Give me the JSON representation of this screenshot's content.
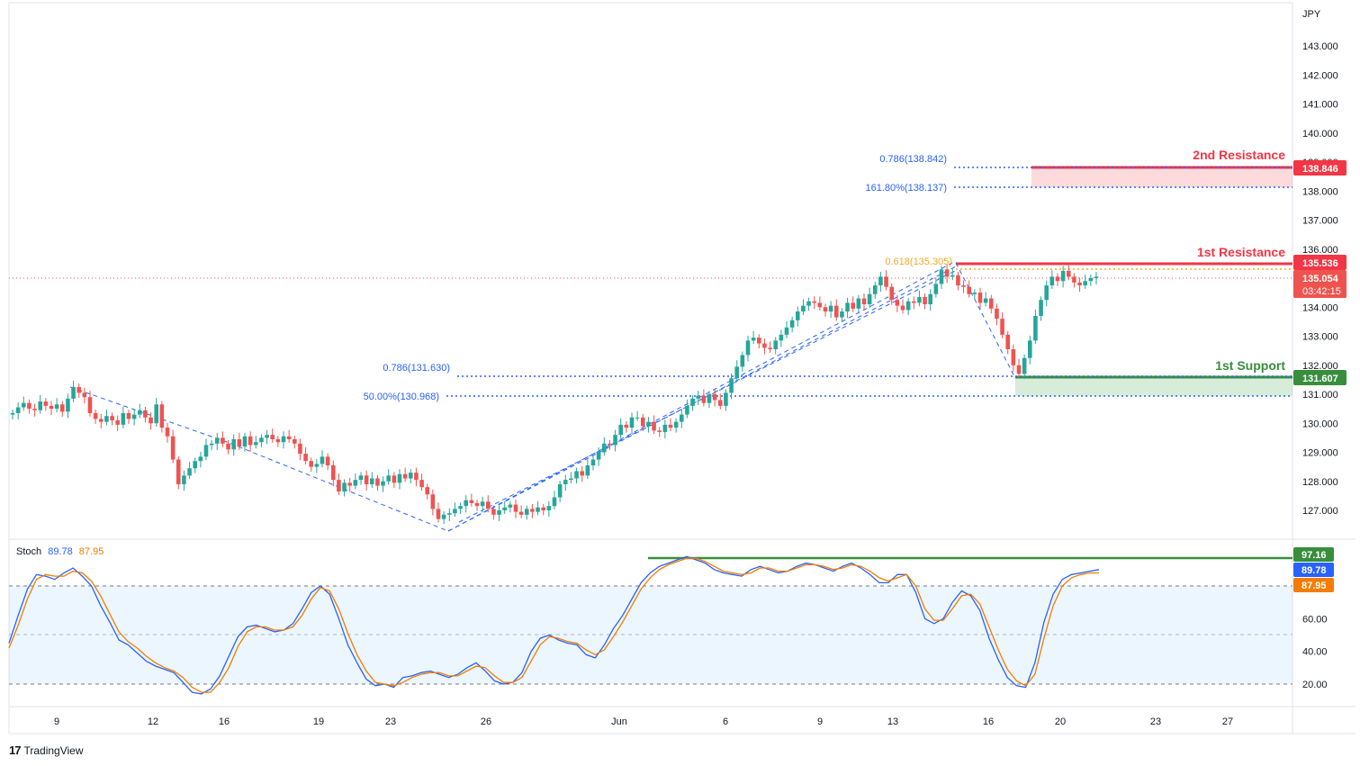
{
  "currency_label": "JPY",
  "chart_data": [
    {
      "type": "candlestick",
      "title": "",
      "y_unit": "JPY",
      "ylim": [
        126.2,
        143.5
      ],
      "y_ticks": [
        "143.000",
        "142.000",
        "141.000",
        "140.000",
        "139.000",
        "138.000",
        "137.000",
        "136.000",
        "135.000",
        "134.000",
        "133.000",
        "132.000",
        "131.000",
        "130.000",
        "129.000",
        "128.000",
        "127.000"
      ],
      "x_ticks": [
        "9",
        "12",
        "16",
        "19",
        "23",
        "26",
        "Jun",
        "6",
        "9",
        "13",
        "16",
        "20",
        "23",
        "27"
      ],
      "closes": [
        130.35,
        130.55,
        130.7,
        130.5,
        130.45,
        130.75,
        130.6,
        130.5,
        130.65,
        130.4,
        130.85,
        131.25,
        131.05,
        130.9,
        130.35,
        130.15,
        130.05,
        130.25,
        130.1,
        129.95,
        130.35,
        130.15,
        130.3,
        130.45,
        130.2,
        130.0,
        130.65,
        129.85,
        129.55,
        128.75,
        127.9,
        128.2,
        128.45,
        128.7,
        128.85,
        129.25,
        129.3,
        129.5,
        129.3,
        129.1,
        129.45,
        129.2,
        129.55,
        129.25,
        129.35,
        129.5,
        129.6,
        129.45,
        129.35,
        129.55,
        129.45,
        129.3,
        128.95,
        128.7,
        128.5,
        128.6,
        128.85,
        128.55,
        128.05,
        127.65,
        127.95,
        127.85,
        128.05,
        128.2,
        127.9,
        128.1,
        127.85,
        128.0,
        128.2,
        127.95,
        128.25,
        128.1,
        128.3,
        128.05,
        127.8,
        127.55,
        127.05,
        126.7,
        126.85,
        126.9,
        127.05,
        127.15,
        127.35,
        127.25,
        127.15,
        127.3,
        127.05,
        126.85,
        127.0,
        127.1,
        127.2,
        126.95,
        126.85,
        127.05,
        126.95,
        127.1,
        127.0,
        127.15,
        127.45,
        127.9,
        128.05,
        128.1,
        128.35,
        128.2,
        128.55,
        128.75,
        129.0,
        129.3,
        129.25,
        129.6,
        129.95,
        129.85,
        130.2,
        130.2,
        129.9,
        130.05,
        129.75,
        129.7,
        129.95,
        129.85,
        130.05,
        130.3,
        130.6,
        130.85,
        130.95,
        130.7,
        131.0,
        130.8,
        130.6,
        131.05,
        131.55,
        131.95,
        132.35,
        132.85,
        132.95,
        132.75,
        132.6,
        132.55,
        132.85,
        133.05,
        133.3,
        133.55,
        133.85,
        134.05,
        134.2,
        134.15,
        134.0,
        133.85,
        134.05,
        133.65,
        133.85,
        134.15,
        133.95,
        134.3,
        134.1,
        134.45,
        134.75,
        135.05,
        134.7,
        134.25,
        134.05,
        133.9,
        134.2,
        134.15,
        134.35,
        134.1,
        134.45,
        134.8,
        135.3,
        135.05,
        135.1,
        134.75,
        134.7,
        134.45,
        134.5,
        134.15,
        134.3,
        133.95,
        133.6,
        133.05,
        132.55,
        132.0,
        131.7,
        132.25,
        132.85,
        133.7,
        134.25,
        134.75,
        135.05,
        134.9,
        135.25,
        135.05,
        134.85,
        134.75,
        134.9,
        135.0,
        135.05
      ]
    },
    {
      "type": "line",
      "title": "",
      "indicator": "Stoch",
      "ylim": [
        10,
        105
      ],
      "y_ticks": [
        "20.00",
        "40.00",
        "60.00"
      ],
      "band": [
        20,
        80
      ],
      "series": [
        {
          "name": "",
          "color": "#2962ff",
          "values": [
            45,
            62,
            78,
            87,
            86,
            84,
            88,
            91,
            86,
            80,
            68,
            58,
            47,
            44,
            39,
            34,
            31,
            29,
            27,
            21,
            15,
            14,
            17,
            25,
            37,
            49,
            55,
            56,
            54,
            52,
            53,
            57,
            66,
            76,
            80,
            75,
            60,
            44,
            33,
            23,
            19,
            20,
            18,
            24,
            25,
            27,
            28,
            26,
            24,
            26,
            30,
            33,
            28,
            22,
            20,
            21,
            27,
            40,
            48,
            50,
            47,
            45,
            44,
            38,
            36,
            44,
            54,
            62,
            72,
            82,
            88,
            92,
            94,
            96,
            98,
            96,
            94,
            90,
            88,
            87,
            86,
            90,
            92,
            90,
            88,
            89,
            92,
            94,
            93,
            91,
            89,
            92,
            94,
            91,
            87,
            82,
            82,
            87,
            87,
            76,
            60,
            57,
            60,
            70,
            77,
            74,
            65,
            48,
            35,
            24,
            19,
            18,
            33,
            58,
            75,
            84,
            87,
            88,
            89,
            90
          ]
        },
        {
          "name": "",
          "color": "#f57c00",
          "values": [
            42,
            56,
            72,
            84,
            87,
            86,
            86,
            89,
            88,
            83,
            74,
            63,
            52,
            46,
            42,
            37,
            33,
            30,
            28,
            24,
            18,
            15,
            15,
            21,
            30,
            43,
            52,
            55,
            55,
            53,
            53,
            55,
            62,
            72,
            79,
            77,
            66,
            51,
            38,
            28,
            21,
            20,
            19,
            21,
            24,
            26,
            27,
            27,
            25,
            25,
            28,
            31,
            30,
            25,
            21,
            21,
            24,
            34,
            44,
            49,
            48,
            46,
            45,
            41,
            38,
            41,
            49,
            58,
            68,
            78,
            85,
            90,
            93,
            95,
            97,
            97,
            95,
            92,
            89,
            88,
            87,
            88,
            91,
            91,
            89,
            89,
            91,
            93,
            93,
            92,
            90,
            91,
            93,
            92,
            89,
            85,
            83,
            85,
            87,
            80,
            66,
            59,
            59,
            66,
            74,
            75,
            69,
            55,
            41,
            29,
            22,
            19,
            26,
            48,
            68,
            80,
            85,
            87,
            88,
            88
          ]
        }
      ]
    }
  ],
  "levels": {
    "fib_0786_upper": "0.786(138.842)",
    "fib_1618": "161.80%(138.137)",
    "fib_0618": "0.618(135.305)",
    "fib_0786_lower": "0.786(131.630)",
    "fib_50": "50.00%(130.968)"
  },
  "zones": {
    "second_resistance": "2nd Resistance",
    "first_resistance": "1st Resistance",
    "first_support": "1st Support"
  },
  "price_badges": {
    "r2": "138.846",
    "r1": "135.536",
    "last": "135.054",
    "countdown": "03:42:15",
    "s1": "131.607"
  },
  "stoch_badges": {
    "level": "97.16",
    "k": "89.78",
    "d": "87.95"
  },
  "stoch_legend": {
    "name": "Stoch",
    "k": "89.78",
    "d": "87.95"
  },
  "colors": {
    "up": "#26a69a",
    "down": "#ef5350",
    "resistance": "#f23645",
    "support": "#388e3c",
    "fib": "#2962ff",
    "fib_gold": "#f9a825",
    "k_line": "#2962ff",
    "d_line": "#f57c00"
  },
  "brand": "TradingView"
}
